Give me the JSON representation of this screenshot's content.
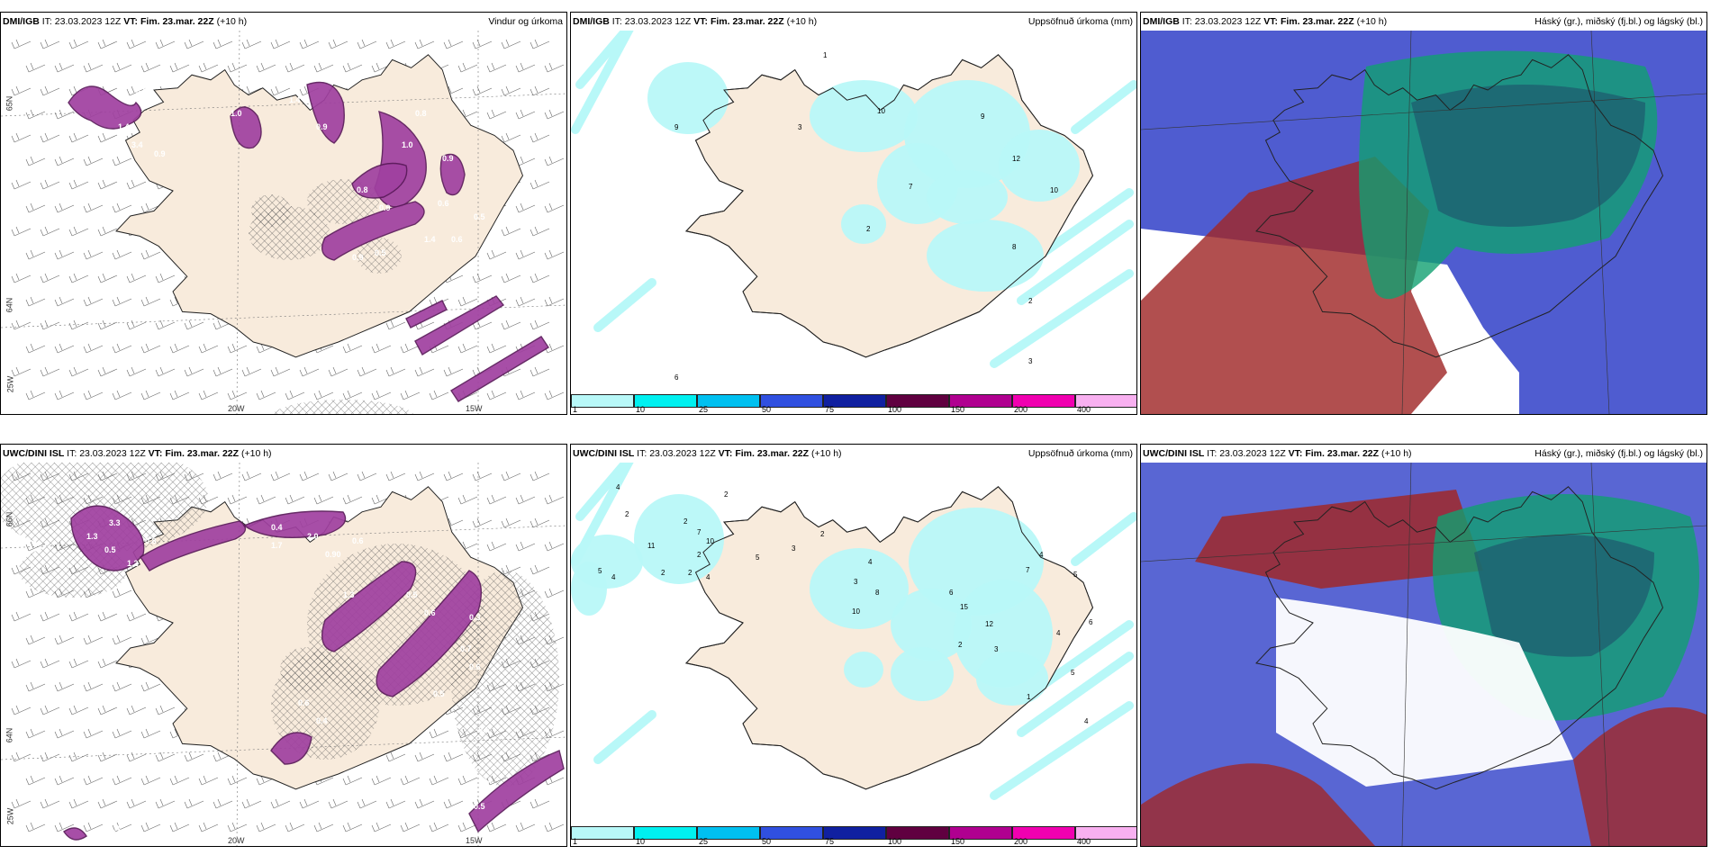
{
  "panels": [
    {
      "model": "DMI/IGB",
      "it_label": "IT:",
      "it_time": "23.03.2023 12Z",
      "vt_label": "VT:",
      "vt_time": "Fim. 23.mar. 22Z",
      "lead": "(+10 h)",
      "title": "Vindur og úrkoma",
      "axis": {
        "bottom_left": "20W",
        "bottom_right": "15W",
        "left_top": "65N",
        "left_mid": "64N",
        "left_bot": "25W"
      },
      "values": [
        "3.0",
        "1.4",
        "3.4",
        "0.9",
        "1.0",
        "1.4",
        "0.9",
        "0.8",
        "1.0",
        "0.9",
        "0.6",
        "1.4",
        "0.8",
        "0.9",
        "0.5",
        "0.6",
        "0.9",
        "0.5"
      ]
    },
    {
      "model": "DMI/IGB",
      "it_label": "IT:",
      "it_time": "23.03.2023 12Z",
      "vt_label": "VT:",
      "vt_time": "Fim. 23.mar. 22Z",
      "lead": "(+10 h)",
      "title": "Uppsöfnuð úrkoma (mm)",
      "values": [
        "1",
        "9",
        "3",
        "10",
        "9",
        "12",
        "7",
        "10",
        "2",
        "8",
        "2",
        "3",
        "6"
      ]
    },
    {
      "model": "DMI/IGB",
      "it_label": "IT:",
      "it_time": "23.03.2023 12Z",
      "vt_label": "VT:",
      "vt_time": "Fim. 23.mar. 22Z",
      "lead": "(+10 h)",
      "title": "Háský (gr.), miðský (fj.bl.) og lágský (bl.)"
    },
    {
      "model": "UWC/DINI ISL",
      "it_label": "IT:",
      "it_time": "23.03.2023 12Z",
      "vt_label": "VT:",
      "vt_time": "Fim. 23.mar. 22Z",
      "lead": "(+10 h)",
      "title": "",
      "axis": {
        "bottom_left": "20W",
        "bottom_right": "15W",
        "left_top": "66N",
        "left_mid": "64N",
        "left_bot": "25W"
      },
      "values": [
        "3.3",
        "1.3",
        "0.5",
        "1.2",
        "0.8",
        "1.7",
        "2.0",
        "0.4",
        "0.90",
        "0.6",
        "0.5",
        "0.6",
        "0.3",
        "1.3",
        "0.6",
        "0.4",
        "0.5",
        "0.6",
        "0.7",
        "0.5",
        "1.3",
        "0.5",
        "0.4"
      ]
    },
    {
      "model": "UWC/DINI ISL",
      "it_label": "IT:",
      "it_time": "23.03.2023 12Z",
      "vt_label": "VT:",
      "vt_time": "Fim. 23.mar. 22Z",
      "lead": "(+10 h)",
      "title": "Uppsöfnuð úrkoma (mm)",
      "values": [
        "4",
        "2",
        "2",
        "2",
        "11",
        "10",
        "7",
        "2",
        "2",
        "4",
        "5",
        "2",
        "4",
        "5",
        "3",
        "2",
        "4",
        "3",
        "10",
        "8",
        "6",
        "15",
        "12",
        "7",
        "4",
        "5",
        "6",
        "4",
        "3",
        "2",
        "5",
        "1",
        "4"
      ]
    },
    {
      "model": "UWC/DINI ISL",
      "it_label": "IT:",
      "it_time": "23.03.2023 12Z",
      "vt_label": "VT:",
      "vt_time": "Fim. 23.mar. 22Z",
      "lead": "(+10 h)",
      "title": "Háský (gr.), miðský (fj.bl.) og lágský (bl.)"
    }
  ],
  "legend": {
    "labels": [
      "1",
      "10",
      "25",
      "50",
      "75",
      "100",
      "150",
      "200",
      "400"
    ],
    "colors": [
      "#b8f8f8",
      "#00f0f0",
      "#00c0f0",
      "#3050e0",
      "#1020a0",
      "#600040",
      "#b00090",
      "#f000b0",
      "#f8b0f0"
    ]
  },
  "colors": {
    "land": "#f8ebdc",
    "sea": "#ffffff",
    "wind_precip": "#a040a0",
    "precip_light": "#b8f8f8",
    "cloud_high": "#a02828",
    "cloud_mid": "#10a070",
    "cloud_low": "#3040c8"
  }
}
